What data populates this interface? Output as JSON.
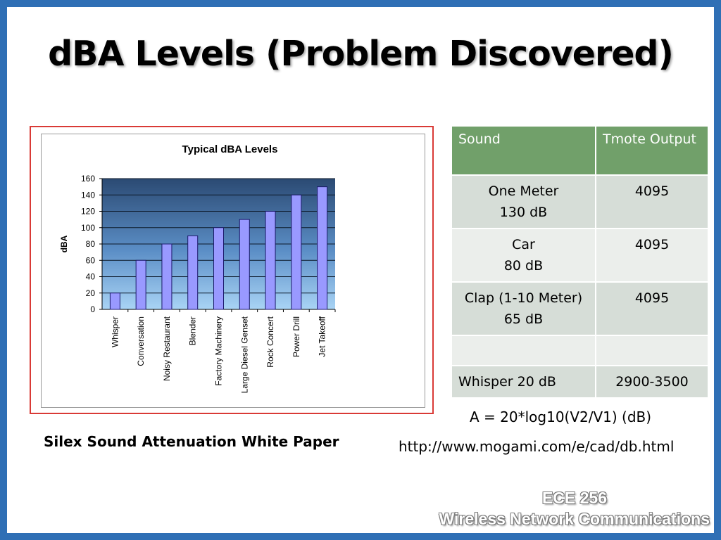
{
  "title": "dBA Levels (Problem Discovered)",
  "caption": "Silex Sound Attenuation White Paper",
  "formula": "A = 20*log10(V2/V1) (dB)",
  "url": "http://www.mogami.com/e/cad/db.html",
  "course": {
    "code": "ECE 256",
    "name": "Wireless Network Communications"
  },
  "table": {
    "headers": [
      "Sound",
      "Tmote Output"
    ],
    "rows": [
      {
        "sound_line1": "One Meter",
        "sound_line2": "130 dB",
        "output": "4095"
      },
      {
        "sound_line1": "Car",
        "sound_line2": "80 dB",
        "output": "4095"
      },
      {
        "sound_line1": "Clap (1-10 Meter)",
        "sound_line2": "65 dB",
        "output": "4095"
      },
      {
        "sound_line1": "",
        "sound_line2": "",
        "output": ""
      },
      {
        "sound_line1": "Whisper 20 dB",
        "sound_line2": "",
        "output": "2900-3500"
      }
    ]
  },
  "colors": {
    "slide_border": "#2f6fb5",
    "table_header": "#71a06a",
    "bar_fill": "#9999ff",
    "chart_frame": "#d93a36"
  },
  "chart_data": {
    "type": "bar",
    "title": "Typical dBA Levels",
    "ylabel": "dBA",
    "xlabel": "",
    "categories": [
      "Whisper",
      "Conversation",
      "Noisy Restaurant",
      "Blender",
      "Factory Machinery",
      "Large Diesel Genset",
      "Rock Concert",
      "Power Drill",
      "Jet Takeoff"
    ],
    "values": [
      20,
      60,
      80,
      90,
      100,
      110,
      120,
      140,
      150
    ],
    "ylim": [
      0,
      160
    ],
    "yticks": [
      0,
      20,
      40,
      60,
      80,
      100,
      120,
      140,
      160
    ],
    "grid": true,
    "legend": "none"
  }
}
